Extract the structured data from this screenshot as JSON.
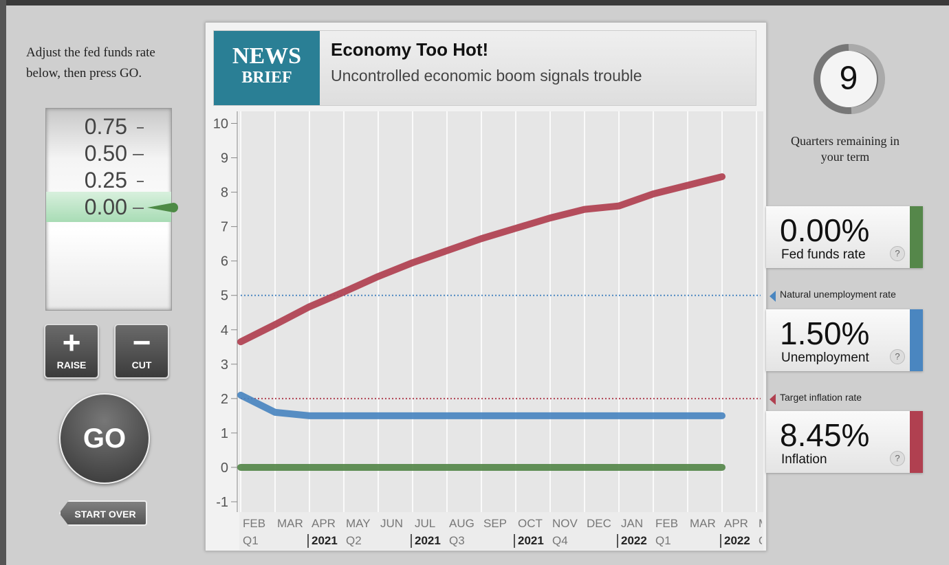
{
  "instructions": "Adjust the fed funds rate below, then press GO.",
  "rate_dial": {
    "labels": [
      "0.75",
      "0.50",
      "0.25",
      "0.00"
    ]
  },
  "buttons": {
    "raise": "RAISE",
    "cut": "CUT",
    "go": "GO",
    "start_over": "START OVER"
  },
  "news": {
    "badge_top": "NEWS",
    "badge_bottom": "BRIEF",
    "headline": "Economy Too Hot!",
    "subhead": "Uncontrolled economic boom signals trouble"
  },
  "quarters": {
    "value": 9,
    "label": "Quarters remaining in your term"
  },
  "help": "?",
  "chart_data": {
    "type": "line",
    "categories": [
      "FEB",
      "MAR",
      "APR",
      "MAY",
      "JUN",
      "JUL",
      "AUG",
      "SEP",
      "OCT",
      "NOV",
      "DEC",
      "JAN",
      "FEB",
      "MAR",
      "APR",
      "M"
    ],
    "sublabels": [
      "Q1",
      null,
      "2021",
      "Q2",
      null,
      "2021",
      "Q3",
      null,
      "2021",
      "Q4",
      null,
      "2022",
      "Q1",
      null,
      "2022",
      "Q"
    ],
    "ylim": [
      -1.3,
      10.35
    ],
    "yticks": [
      -1,
      0,
      1,
      2,
      3,
      4,
      5,
      6,
      7,
      8,
      9,
      10
    ],
    "grid": true,
    "reference_lines": [
      {
        "value": 5,
        "label": "Natural unemployment rate",
        "color": "#4a86c0"
      },
      {
        "value": 2,
        "label": "Target inflation rate",
        "color": "#b04050"
      }
    ],
    "series": [
      {
        "name": "Inflation",
        "color": "#b04050",
        "current": "8.45%",
        "values": [
          3.65,
          4.15,
          4.67,
          5.1,
          5.55,
          5.95,
          6.3,
          6.65,
          6.95,
          7.25,
          7.5,
          7.6,
          7.95,
          8.2,
          8.45,
          null
        ]
      },
      {
        "name": "Unemployment",
        "color": "#4a86c0",
        "current": "1.50%",
        "values": [
          2.1,
          1.6,
          1.5,
          1.5,
          1.5,
          1.5,
          1.5,
          1.5,
          1.5,
          1.5,
          1.5,
          1.5,
          1.5,
          1.5,
          1.5,
          null
        ]
      },
      {
        "name": "Fed funds rate",
        "color": "#55874a",
        "current": "0.00%",
        "values": [
          0,
          0,
          0,
          0,
          0,
          0,
          0,
          0,
          0,
          0,
          0,
          0,
          0,
          0,
          0,
          null
        ]
      }
    ]
  }
}
